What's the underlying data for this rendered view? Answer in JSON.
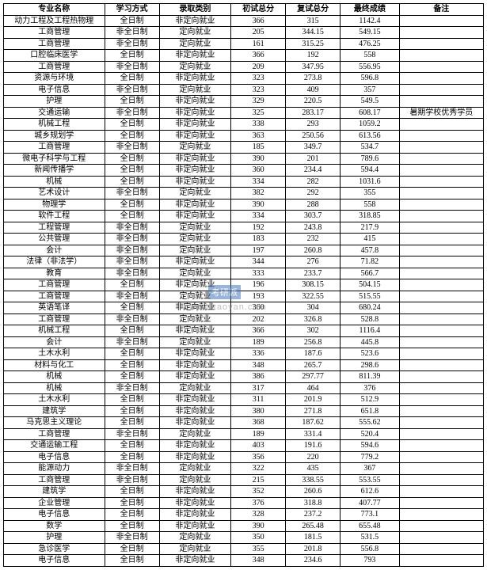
{
  "table": {
    "columns": [
      "专业名称",
      "学习方式",
      "录取类别",
      "初试总分",
      "复试总分",
      "最终成绩",
      "备注"
    ],
    "rows": [
      [
        "动力工程及工程热物理",
        "全日制",
        "非定向就业",
        "366",
        "315",
        "1142.4",
        ""
      ],
      [
        "工商管理",
        "非全日制",
        "定向就业",
        "205",
        "344.15",
        "549.15",
        ""
      ],
      [
        "工商管理",
        "非全日制",
        "定向就业",
        "161",
        "315.25",
        "476.25",
        ""
      ],
      [
        "口腔临床医学",
        "全日制",
        "非定向就业",
        "366",
        "192",
        "558",
        ""
      ],
      [
        "工商管理",
        "非全日制",
        "定向就业",
        "209",
        "347.95",
        "556.95",
        ""
      ],
      [
        "资源与环境",
        "全日制",
        "非定向就业",
        "323",
        "273.8",
        "596.8",
        ""
      ],
      [
        "电子信息",
        "非全日制",
        "定向就业",
        "323",
        "409",
        "357",
        ""
      ],
      [
        "护理",
        "全日制",
        "非定向就业",
        "329",
        "220.5",
        "549.5",
        ""
      ],
      [
        "交通运输",
        "非全日制",
        "非定向就业",
        "325",
        "283.17",
        "608.17",
        "暑期学校优秀学员"
      ],
      [
        "机械工程",
        "全日制",
        "非定向就业",
        "338",
        "293",
        "1059.2",
        ""
      ],
      [
        "城乡规划学",
        "全日制",
        "非定向就业",
        "363",
        "250.56",
        "613.56",
        ""
      ],
      [
        "工商管理",
        "非全日制",
        "定向就业",
        "185",
        "349.7",
        "534.7",
        ""
      ],
      [
        "微电子科学与工程",
        "全日制",
        "非定向就业",
        "390",
        "201",
        "789.6",
        ""
      ],
      [
        "新闻传播学",
        "全日制",
        "非定向就业",
        "360",
        "234.4",
        "594.4",
        ""
      ],
      [
        "机械",
        "全日制",
        "非定向就业",
        "334",
        "282",
        "1031.6",
        ""
      ],
      [
        "艺术设计",
        "非全日制",
        "定向就业",
        "382",
        "292",
        "355",
        ""
      ],
      [
        "物理学",
        "全日制",
        "非定向就业",
        "390",
        "288",
        "558",
        ""
      ],
      [
        "软件工程",
        "全日制",
        "非定向就业",
        "334",
        "303.7",
        "318.85",
        ""
      ],
      [
        "工程管理",
        "非全日制",
        "定向就业",
        "192",
        "243.8",
        "217.9",
        ""
      ],
      [
        "公共管理",
        "非全日制",
        "定向就业",
        "183",
        "232",
        "415",
        ""
      ],
      [
        "会计",
        "非全日制",
        "定向就业",
        "197",
        "260.8",
        "457.8",
        ""
      ],
      [
        "法律（非法学）",
        "非全日制",
        "非定向就业",
        "344",
        "276",
        "71.82",
        ""
      ],
      [
        "教育",
        "非全日制",
        "定向就业",
        "333",
        "233.7",
        "566.7",
        ""
      ],
      [
        "工商管理",
        "全日制",
        "非定向就业",
        "196",
        "308.15",
        "504.15",
        ""
      ],
      [
        "工商管理",
        "非全日制",
        "定向就业",
        "193",
        "322.55",
        "515.55",
        ""
      ],
      [
        "英语笔译",
        "全日制",
        "非定向就业",
        "360",
        "304",
        "680.24",
        ""
      ],
      [
        "工商管理",
        "非全日制",
        "定向就业",
        "202",
        "326.8",
        "528.8",
        ""
      ],
      [
        "机械工程",
        "全日制",
        "非定向就业",
        "366",
        "302",
        "1116.4",
        ""
      ],
      [
        "会计",
        "非全日制",
        "定向就业",
        "189",
        "256.8",
        "445.8",
        ""
      ],
      [
        "土木水利",
        "全日制",
        "非定向就业",
        "336",
        "187.6",
        "523.6",
        ""
      ],
      [
        "材料与化工",
        "全日制",
        "非定向就业",
        "348",
        "265.7",
        "298.6",
        ""
      ],
      [
        "机械",
        "全日制",
        "非定向就业",
        "386",
        "297.77",
        "811.39",
        ""
      ],
      [
        "机械",
        "非全日制",
        "定向就业",
        "317",
        "464",
        "376",
        ""
      ],
      [
        "土木水利",
        "全日制",
        "非定向就业",
        "311",
        "201.9",
        "512.9",
        ""
      ],
      [
        "建筑学",
        "全日制",
        "非定向就业",
        "380",
        "271.8",
        "651.8",
        ""
      ],
      [
        "马克思主义理论",
        "全日制",
        "非定向就业",
        "368",
        "187.62",
        "555.62",
        ""
      ],
      [
        "工商管理",
        "非全日制",
        "定向就业",
        "189",
        "331.4",
        "520.4",
        ""
      ],
      [
        "交通运输工程",
        "全日制",
        "非定向就业",
        "403",
        "191.6",
        "594.6",
        ""
      ],
      [
        "电子信息",
        "全日制",
        "非定向就业",
        "356",
        "220",
        "779.2",
        ""
      ],
      [
        "能源动力",
        "非全日制",
        "定向就业",
        "322",
        "435",
        "367",
        ""
      ],
      [
        "工商管理",
        "非全日制",
        "定向就业",
        "215",
        "338.55",
        "553.55",
        ""
      ],
      [
        "建筑学",
        "全日制",
        "非定向就业",
        "352",
        "260.6",
        "612.6",
        ""
      ],
      [
        "企业管理",
        "全日制",
        "非定向就业",
        "376",
        "318.8",
        "407.77",
        ""
      ],
      [
        "电子信息",
        "全日制",
        "非定向就业",
        "328",
        "237.2",
        "773.1",
        ""
      ],
      [
        "数学",
        "全日制",
        "非定向就业",
        "390",
        "265.48",
        "655.48",
        ""
      ],
      [
        "护理",
        "非全日制",
        "定向就业",
        "350",
        "181.5",
        "531.5",
        ""
      ],
      [
        "急诊医学",
        "全日制",
        "定向就业",
        "355",
        "201.8",
        "556.8",
        ""
      ],
      [
        "电子信息",
        "全日制",
        "非定向就业",
        "348",
        "234.6",
        "793",
        ""
      ]
    ],
    "column_classes": [
      "col-major",
      "col-mode",
      "col-type",
      "col-prelim",
      "col-retest",
      "col-final",
      "col-remark"
    ],
    "border_color": "#000000",
    "background_color": "#ffffff",
    "header_fontsize": 10,
    "cell_fontsize": 10,
    "font_family": "SimSun"
  },
  "watermark": {
    "line1": "考研派",
    "line2": "www.okaoyan.com"
  }
}
